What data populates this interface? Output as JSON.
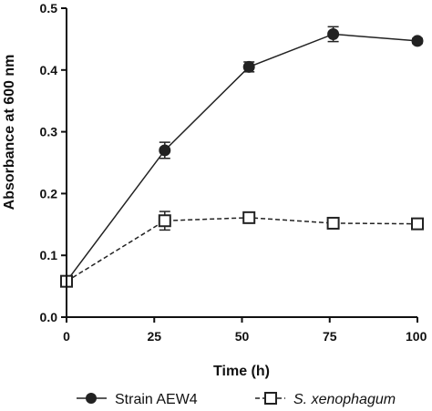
{
  "chart_data": {
    "type": "line",
    "title": "",
    "xlabel": "Time (h)",
    "ylabel": "Absorbance at 600 nm",
    "xlim": [
      0,
      100
    ],
    "ylim": [
      0,
      0.5
    ],
    "x_ticks": [
      0,
      25,
      50,
      75,
      100
    ],
    "x_tick_labels": [
      "0",
      "25",
      "50",
      "75",
      "100"
    ],
    "y_ticks": [
      0,
      0.1,
      0.2,
      0.3,
      0.4,
      0.5
    ],
    "y_tick_labels": [
      "0.0",
      "0.1",
      "0.2",
      "0.3",
      "0.4",
      "0.5"
    ],
    "grid": false,
    "legend_position": "bottom",
    "series": [
      {
        "name": "Strain AEW4",
        "marker": "filled-circle",
        "line_style": "solid",
        "color": "#222222",
        "x": [
          0,
          28,
          52,
          76,
          100
        ],
        "y": [
          0.058,
          0.27,
          0.405,
          0.458,
          0.447
        ],
        "error": [
          0.005,
          0.013,
          0.008,
          0.012,
          0.004
        ]
      },
      {
        "name": "S. xenophagum",
        "marker": "open-square",
        "line_style": "dashed",
        "color": "#222222",
        "x": [
          0,
          28,
          52,
          76,
          100
        ],
        "y": [
          0.058,
          0.156,
          0.161,
          0.152,
          0.151
        ],
        "error": [
          0.004,
          0.015,
          0.005,
          0.004,
          0.004
        ]
      }
    ]
  }
}
